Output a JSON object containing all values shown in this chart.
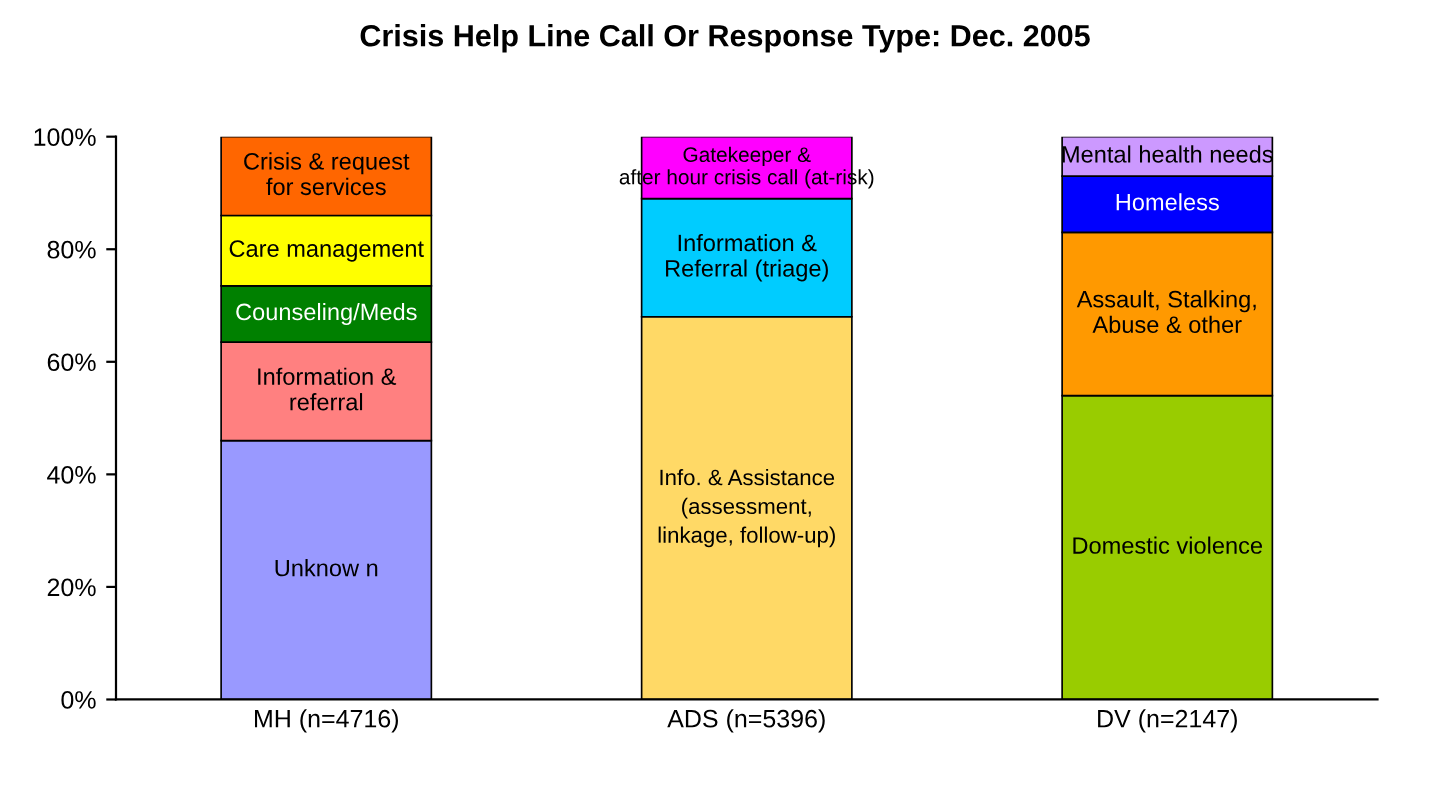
{
  "chart_data": {
    "type": "bar",
    "stacked": true,
    "title": "Crisis Help Line Call Or Response Type: Dec. 2005",
    "categories": [
      "MH (n=4716)",
      "ADS (n=5396)",
      "DV (n=2147)"
    ],
    "series": [
      {
        "name": "Unknow n",
        "color": "#9999ff",
        "values": [
          46,
          null,
          null
        ]
      },
      {
        "name": "Information &\nreferral",
        "color": "#ff8080",
        "values": [
          17.5,
          null,
          null
        ]
      },
      {
        "name": "Counseling/Meds",
        "color": "#008000",
        "values": [
          10,
          null,
          null
        ]
      },
      {
        "name": "Care management",
        "color": "#ffff00",
        "values": [
          12.5,
          null,
          null
        ]
      },
      {
        "name": "Crisis & request\nfor services",
        "color": "#ff6600",
        "values": [
          14,
          null,
          null
        ]
      },
      {
        "name": "Info. & Assistance\n(assessment,\nlinkage, follow-up)",
        "color": "#ffd966",
        "values": [
          null,
          68,
          null
        ]
      },
      {
        "name": "Information &\nReferral (triage)",
        "color": "#00ccff",
        "values": [
          null,
          21,
          null
        ]
      },
      {
        "name": "Gatekeeper &\nafter hour crisis call (at-risk)",
        "color": "#ff00ff",
        "values": [
          null,
          11,
          null
        ]
      },
      {
        "name": "Domestic violence",
        "color": "#99cc00",
        "values": [
          null,
          null,
          54
        ]
      },
      {
        "name": "Assault, Stalking,\nAbuse & other",
        "color": "#ff9900",
        "values": [
          null,
          null,
          29
        ]
      },
      {
        "name": "Homeless",
        "color": "#0000ff",
        "values": [
          null,
          null,
          10
        ]
      },
      {
        "name": "Mental health needs",
        "color": "#cc99ff",
        "values": [
          null,
          null,
          7
        ]
      }
    ],
    "ylim": [
      0,
      100
    ],
    "yticks": [
      {
        "value": 0,
        "label": "0%"
      },
      {
        "value": 20,
        "label": "20%"
      },
      {
        "value": 40,
        "label": "40%"
      },
      {
        "value": 60,
        "label": "60%"
      },
      {
        "value": 80,
        "label": "80%"
      },
      {
        "value": 100,
        "label": "100%"
      }
    ],
    "grid": false,
    "legend": false
  }
}
